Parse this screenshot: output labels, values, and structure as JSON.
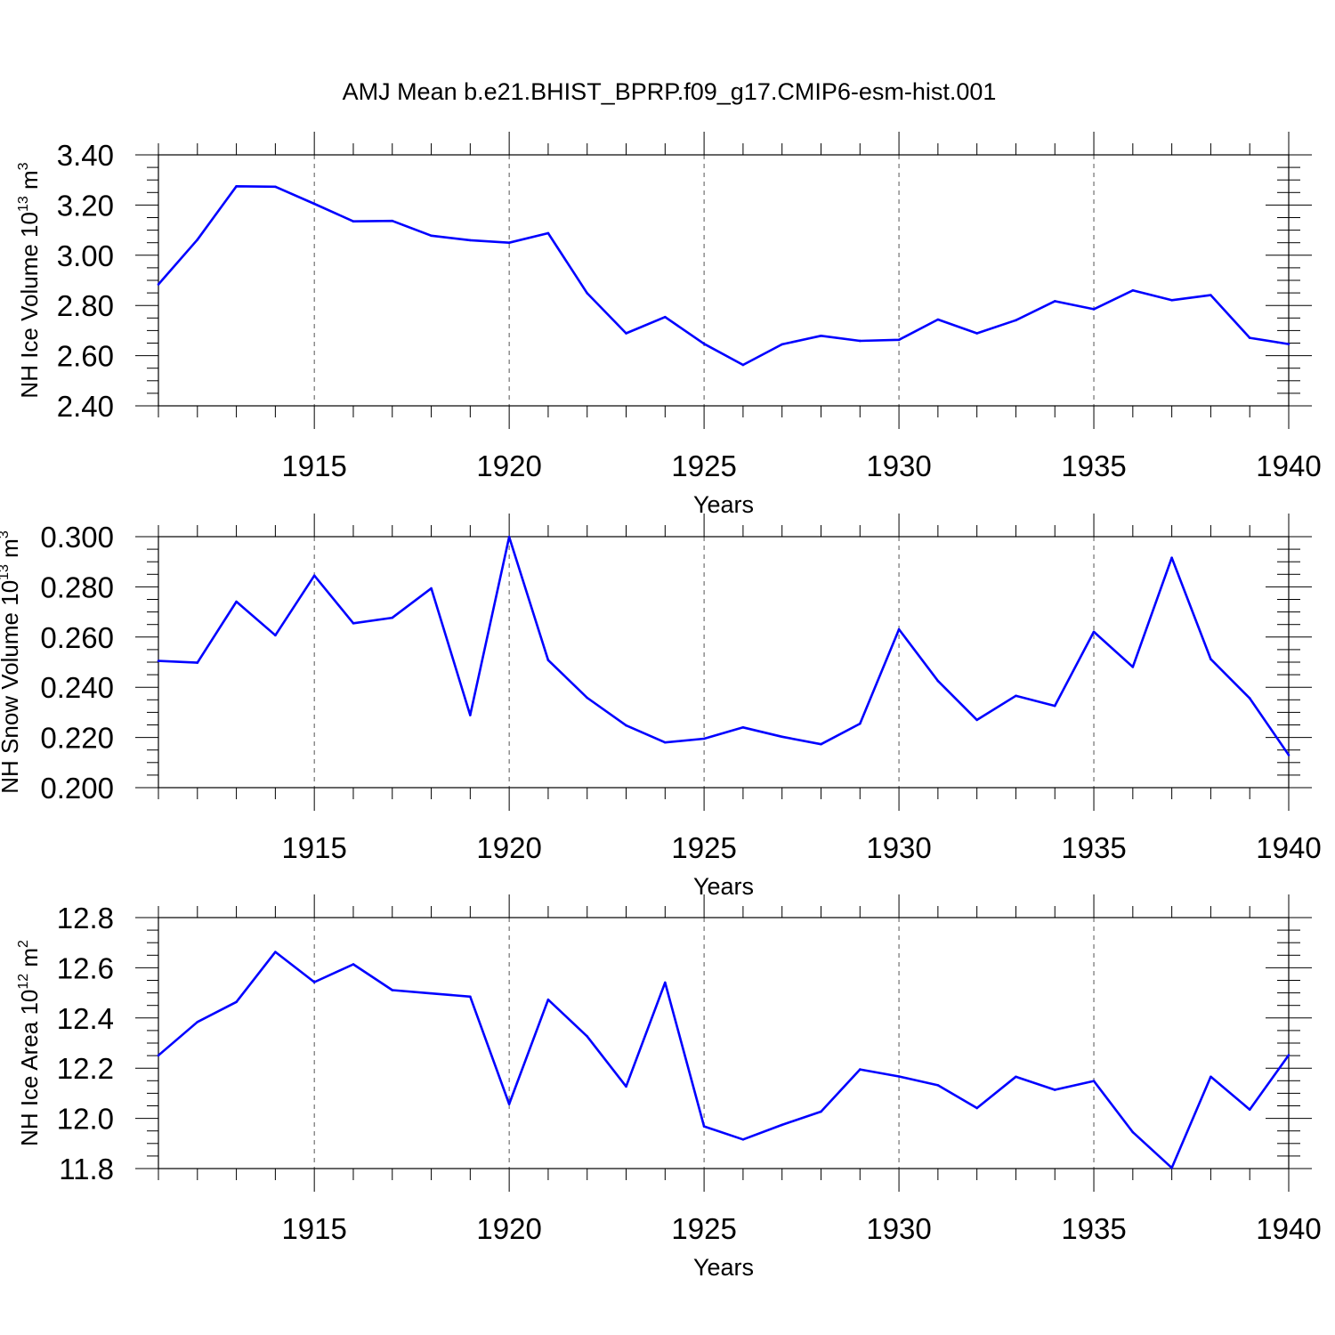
{
  "figure_title": "AMJ Mean b.e21.BHIST_BPRP.f09_g17.CMIP6-esm-hist.001",
  "chart_data": [
    {
      "type": "line",
      "ylabel": {
        "base": "NH Ice Volume 10",
        "exp": "13",
        "unit": " m",
        "unit_exp": "3"
      },
      "xlabel": "Years",
      "xlim": [
        1911,
        1940
      ],
      "ylim": [
        2.4,
        3.4
      ],
      "yticks": [
        2.4,
        2.6,
        2.8,
        3.0,
        3.2,
        3.4
      ],
      "ytick_labels": [
        "2.40",
        "2.60",
        "2.80",
        "3.00",
        "3.20",
        "3.40"
      ],
      "xticks": [
        1915,
        1920,
        1925,
        1930,
        1935,
        1940
      ],
      "xtick_labels": [
        "1915",
        "1920",
        "1925",
        "1930",
        "1935",
        "1940"
      ],
      "grid": "dashed vertical at major x ticks",
      "line_color": "#0000ff",
      "x": [
        1911,
        1912,
        1913,
        1914,
        1915,
        1916,
        1917,
        1918,
        1919,
        1920,
        1921,
        1922,
        1923,
        1924,
        1925,
        1926,
        1927,
        1928,
        1929,
        1930,
        1931,
        1932,
        1933,
        1934,
        1935,
        1936,
        1937,
        1938,
        1939,
        1940
      ],
      "values": [
        2.884,
        3.062,
        3.275,
        3.273,
        3.205,
        3.135,
        3.137,
        3.078,
        3.06,
        3.05,
        3.088,
        2.849,
        2.689,
        2.754,
        2.647,
        2.563,
        2.645,
        2.679,
        2.659,
        2.663,
        2.744,
        2.689,
        2.741,
        2.817,
        2.785,
        2.86,
        2.821,
        2.841,
        2.671,
        2.646
      ]
    },
    {
      "type": "line",
      "ylabel": {
        "base": "NH Snow Volume 10",
        "exp": "13",
        "unit": " m",
        "unit_exp": "3"
      },
      "xlabel": "Years",
      "xlim": [
        1911,
        1940
      ],
      "ylim": [
        0.2,
        0.3
      ],
      "yticks": [
        0.2,
        0.22,
        0.24,
        0.26,
        0.28,
        0.3
      ],
      "ytick_labels": [
        "0.200",
        "0.220",
        "0.240",
        "0.260",
        "0.280",
        "0.300"
      ],
      "xticks": [
        1915,
        1920,
        1925,
        1930,
        1935,
        1940
      ],
      "xtick_labels": [
        "1915",
        "1920",
        "1925",
        "1930",
        "1935",
        "1940"
      ],
      "grid": "dashed vertical at major x ticks",
      "line_color": "#0000ff",
      "x": [
        1911,
        1912,
        1913,
        1914,
        1915,
        1916,
        1917,
        1918,
        1919,
        1920,
        1921,
        1922,
        1923,
        1924,
        1925,
        1926,
        1927,
        1928,
        1929,
        1930,
        1931,
        1932,
        1933,
        1934,
        1935,
        1936,
        1937,
        1938,
        1939,
        1940
      ],
      "values": [
        0.2505,
        0.2498,
        0.2741,
        0.2607,
        0.2845,
        0.2655,
        0.2677,
        0.2794,
        0.2289,
        0.2999,
        0.2508,
        0.2358,
        0.2248,
        0.218,
        0.2195,
        0.224,
        0.2203,
        0.2173,
        0.2255,
        0.2631,
        0.2425,
        0.227,
        0.2366,
        0.2326,
        0.2621,
        0.2481,
        0.2916,
        0.2512,
        0.2356,
        0.213
      ]
    },
    {
      "type": "line",
      "ylabel": {
        "base": "NH Ice Area 10",
        "exp": "12",
        "unit": " m",
        "unit_exp": "2"
      },
      "xlabel": "Years",
      "xlim": [
        1911,
        1940
      ],
      "ylim": [
        11.8,
        12.8
      ],
      "yticks": [
        11.8,
        12.0,
        12.2,
        12.4,
        12.6,
        12.8
      ],
      "ytick_labels": [
        "11.8",
        "12.0",
        "12.2",
        "12.4",
        "12.6",
        "12.8"
      ],
      "xticks": [
        1915,
        1920,
        1925,
        1930,
        1935,
        1940
      ],
      "xtick_labels": [
        "1915",
        "1920",
        "1925",
        "1930",
        "1935",
        "1940"
      ],
      "grid": "dashed vertical at major x ticks",
      "line_color": "#0000ff",
      "x": [
        1911,
        1912,
        1913,
        1914,
        1915,
        1916,
        1917,
        1918,
        1919,
        1920,
        1921,
        1922,
        1923,
        1924,
        1925,
        1926,
        1927,
        1928,
        1929,
        1930,
        1931,
        1932,
        1933,
        1934,
        1935,
        1936,
        1937,
        1938,
        1939,
        1940
      ],
      "values": [
        12.251,
        12.384,
        12.464,
        12.663,
        12.543,
        12.614,
        12.511,
        12.498,
        12.485,
        12.057,
        12.473,
        12.327,
        12.127,
        12.541,
        11.968,
        11.916,
        11.974,
        12.027,
        12.195,
        12.167,
        12.132,
        12.041,
        12.166,
        12.114,
        12.149,
        11.945,
        11.803,
        12.166,
        12.035,
        12.252
      ]
    }
  ]
}
